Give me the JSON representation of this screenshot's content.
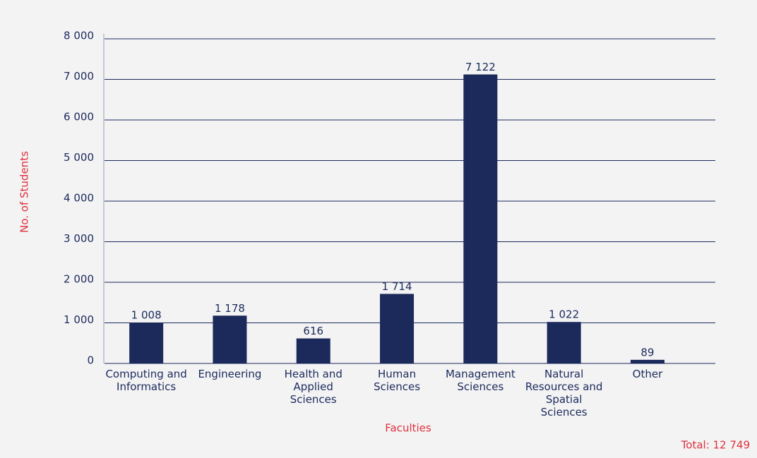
{
  "chart_data": {
    "type": "bar",
    "categories": [
      "Computing and Informatics",
      "Engineering",
      "Health and Applied Sciences",
      "Human Sciences",
      "Management Sciences",
      "Natural Resources and Spatial Sciences",
      "Other"
    ],
    "values": [
      1008,
      1178,
      616,
      1714,
      7122,
      1022,
      89
    ],
    "value_labels": [
      "1 008",
      "1 178",
      "616",
      "1 714",
      "7 122",
      "1 022",
      "89"
    ],
    "color": "#1c2a5b",
    "ylim": [
      0,
      8000
    ],
    "yticks": [
      0,
      {
        "value": 1000,
        "label": "1 000"
      },
      {
        "value": 2000,
        "label": "2 000"
      },
      {
        "value": 3000,
        "label": "3 000"
      },
      {
        "value": 4000,
        "label": "4 000"
      },
      {
        "value": 5000,
        "label": "5 000"
      },
      {
        "value": 6000,
        "label": "6 000"
      },
      {
        "value": 7000,
        "label": "7 000"
      },
      {
        "value": 8000,
        "label": "8 000"
      }
    ],
    "grid": true,
    "y_label": "No. of Students",
    "x_label": "Faculties",
    "total_label": "Total: 12 749"
  }
}
